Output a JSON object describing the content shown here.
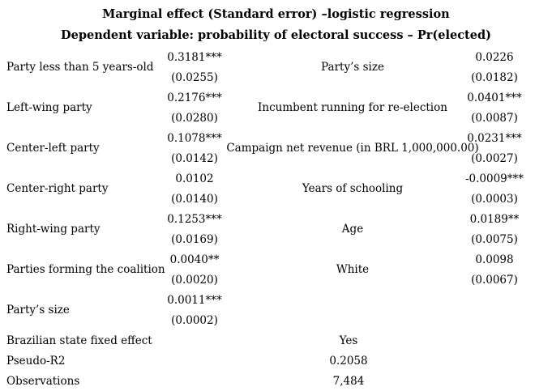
{
  "title": "Marginal effect (Standard error) –logistic regression",
  "subtitle": "Dependent variable: probability of electoral success – Pr(elected)",
  "colors": {
    "background": "#ffffff",
    "text": "#000000"
  },
  "left_rows": [
    {
      "label": "Party less than 5 years-old",
      "estimate": "0.3181***",
      "se": "(0.0255)"
    },
    {
      "label": "Left-wing party",
      "estimate": "0.2176***",
      "se": "(0.0280)"
    },
    {
      "label": "Center-left party",
      "estimate": "0.1078***",
      "se": "(0.0142)"
    },
    {
      "label": "Center-right party",
      "estimate": "0.0102",
      "se": "(0.0140)"
    },
    {
      "label": "Right-wing party",
      "estimate": "0.1253***",
      "se": "(0.0169)"
    },
    {
      "label": "Parties forming the coalition",
      "estimate": "0.0040**",
      "se": "(0.0020)"
    },
    {
      "label": "Party’s size",
      "estimate": "0.0011***",
      "se": "(0.0002)"
    }
  ],
  "right_rows": [
    {
      "label": "Party’s size",
      "estimate": "0.0226",
      "se": "(0.0182)"
    },
    {
      "label": "Incumbent running for re-election",
      "estimate": "0.0401***",
      "se": "(0.0087)"
    },
    {
      "label": "Campaign net revenue (in BRL 1,000,000.00)",
      "estimate": "0.0231***",
      "se": "(0.0027)"
    },
    {
      "label": "Years of schooling",
      "estimate": "-0.0009***",
      "se": "(0.0003)"
    },
    {
      "label": "Age",
      "estimate": "0.0189**",
      "se": "(0.0075)"
    },
    {
      "label": "White",
      "estimate": "0.0098",
      "se": "(0.0067)"
    }
  ],
  "summary_rows": [
    {
      "label": "Brazilian state fixed effect",
      "value": "Yes"
    },
    {
      "label": "Pseudo-R2",
      "value": "0.2058"
    },
    {
      "label": "Observations",
      "value": "7,484"
    }
  ]
}
